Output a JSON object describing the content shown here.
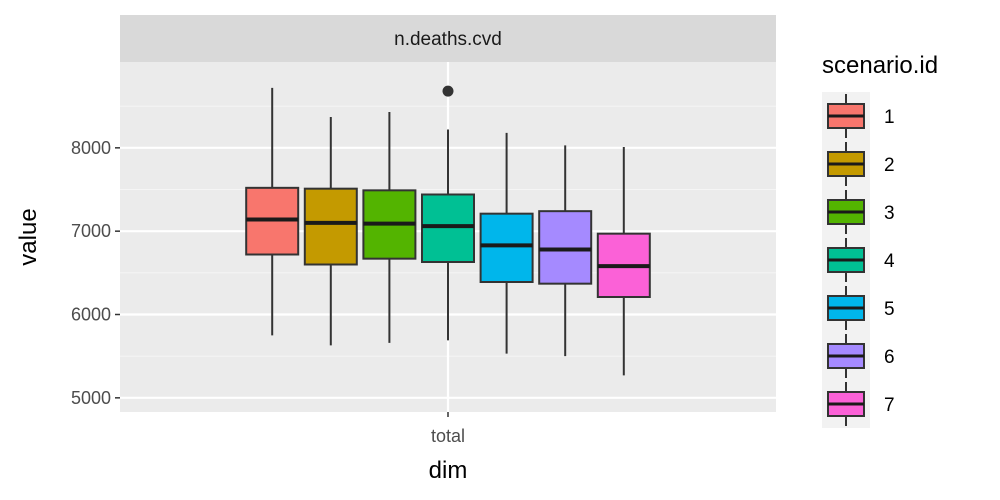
{
  "chart_data": {
    "type": "boxplot",
    "facet_label": "n.deaths.cvd",
    "xlabel": "dim",
    "ylabel": "value",
    "categories": [
      "total"
    ],
    "ylim": [
      4830,
      9030
    ],
    "yticks": [
      5000,
      6000,
      7000,
      8000
    ],
    "y_minor_ticks": [
      5500,
      6500,
      7500,
      8500
    ],
    "grid": true,
    "legend": {
      "title": "scenario.id",
      "position": "right"
    },
    "series": [
      {
        "name": "1",
        "color": "#F8766D",
        "min": 5750,
        "q1": 6720,
        "median": 7140,
        "q3": 7520,
        "max": 8720,
        "outliers": []
      },
      {
        "name": "2",
        "color": "#C49A00",
        "min": 5630,
        "q1": 6600,
        "median": 7100,
        "q3": 7510,
        "max": 8370,
        "outliers": []
      },
      {
        "name": "3",
        "color": "#53B400",
        "min": 5660,
        "q1": 6670,
        "median": 7090,
        "q3": 7490,
        "max": 8430,
        "outliers": []
      },
      {
        "name": "4",
        "color": "#00C094",
        "min": 5690,
        "q1": 6630,
        "median": 7060,
        "q3": 7440,
        "max": 8220,
        "outliers": [
          8680
        ]
      },
      {
        "name": "5",
        "color": "#00B6EB",
        "min": 5530,
        "q1": 6390,
        "median": 6830,
        "q3": 7210,
        "max": 8180,
        "outliers": []
      },
      {
        "name": "6",
        "color": "#A58AFF",
        "min": 5500,
        "q1": 6370,
        "median": 6780,
        "q3": 7240,
        "max": 8030,
        "outliers": []
      },
      {
        "name": "7",
        "color": "#FB61D7",
        "min": 5270,
        "q1": 6210,
        "median": 6580,
        "q3": 6970,
        "max": 8010,
        "outliers": []
      }
    ]
  }
}
